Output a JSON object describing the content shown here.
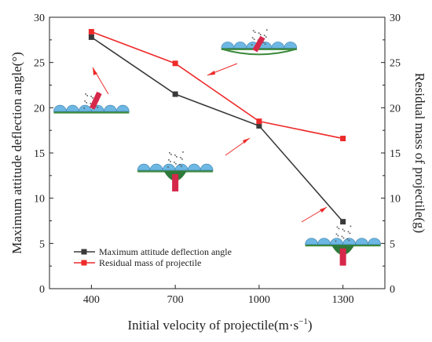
{
  "chart_data": {
    "type": "line",
    "x": [
      400,
      700,
      1000,
      1300
    ],
    "xlabel": "Initial velocity of projectile(m·s",
    "xlabel_sup": "−1",
    "xlabel_end": ")",
    "ylabel": "Maximum attitude deflection angle(°)",
    "ylabel_right": "Residual mass of projectile(g)",
    "xlim": [
      250,
      1450
    ],
    "ylim": [
      0,
      30
    ],
    "ylim_right": [
      0,
      30
    ],
    "x_ticks": [
      "400",
      "700",
      "1000",
      "1300"
    ],
    "y_ticks": [
      "0",
      "5",
      "10",
      "15",
      "20",
      "25",
      "30"
    ],
    "y_ticks_right": [
      "0",
      "5",
      "10",
      "15",
      "20",
      "25",
      "30"
    ],
    "series": [
      {
        "name": "Maximum attitude deflection angle",
        "color": "#3a3a3a",
        "marker": "square",
        "axis": "left",
        "values": [
          27.8,
          21.5,
          18.0,
          7.4
        ]
      },
      {
        "name": "Residual mass of projectile",
        "color": "#ee2a2a",
        "marker": "square",
        "axis": "right",
        "values": [
          28.4,
          24.9,
          18.5,
          16.6
        ]
      }
    ],
    "legend_position": "bottom-left",
    "grid": false,
    "insets": [
      {
        "name": "inset-400",
        "x_data": 400,
        "y_data": 19.5
      },
      {
        "name": "inset-700",
        "x_data": 1000,
        "y_data": 26.5
      },
      {
        "name": "inset-1000",
        "x_data": 700,
        "y_data": 13.0
      },
      {
        "name": "inset-1300",
        "x_data": 1300,
        "y_data": 4.8
      }
    ]
  }
}
